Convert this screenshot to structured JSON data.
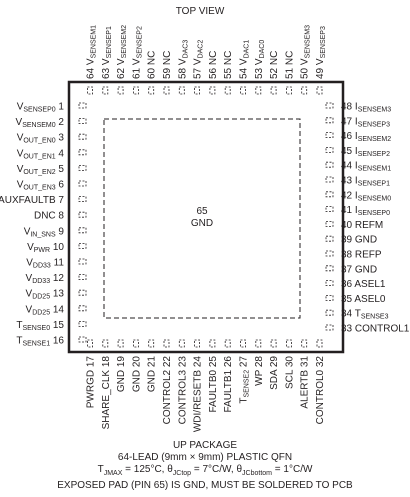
{
  "title": "TOP VIEW",
  "exposed_pad": {
    "number": "65",
    "name": "GND"
  },
  "pins": {
    "left": [
      {
        "n": "1",
        "name": "V",
        "sub": "SENSEP0"
      },
      {
        "n": "2",
        "name": "V",
        "sub": "SENSEM0"
      },
      {
        "n": "3",
        "name": "V",
        "sub": "OUT_EN0"
      },
      {
        "n": "4",
        "name": "V",
        "sub": "OUT_EN1"
      },
      {
        "n": "5",
        "name": "V",
        "sub": "OUT_EN2"
      },
      {
        "n": "6",
        "name": "V",
        "sub": "OUT_EN3"
      },
      {
        "n": "7",
        "name": "AUXFAULTB",
        "sub": ""
      },
      {
        "n": "8",
        "name": "DNC",
        "sub": ""
      },
      {
        "n": "9",
        "name": "V",
        "sub": "IN_SNS"
      },
      {
        "n": "10",
        "name": "V",
        "sub": "PWR"
      },
      {
        "n": "11",
        "name": "V",
        "sub": "DD33"
      },
      {
        "n": "12",
        "name": "V",
        "sub": "DD33"
      },
      {
        "n": "13",
        "name": "V",
        "sub": "DD25"
      },
      {
        "n": "14",
        "name": "V",
        "sub": "DD25"
      },
      {
        "n": "15",
        "name": "T",
        "sub": "SENSE0"
      },
      {
        "n": "16",
        "name": "T",
        "sub": "SENSE1"
      }
    ],
    "bottom": [
      {
        "n": "17",
        "name": "PWRGD",
        "sub": ""
      },
      {
        "n": "18",
        "name": "SHARE_CLK",
        "sub": ""
      },
      {
        "n": "19",
        "name": "GND",
        "sub": ""
      },
      {
        "n": "20",
        "name": "GND",
        "sub": ""
      },
      {
        "n": "21",
        "name": "GND",
        "sub": ""
      },
      {
        "n": "22",
        "name": "CONTROL2",
        "sub": ""
      },
      {
        "n": "23",
        "name": "CONTROL3",
        "sub": ""
      },
      {
        "n": "24",
        "name": "WDI/RESETB",
        "sub": ""
      },
      {
        "n": "25",
        "name": "FAULTB0",
        "sub": ""
      },
      {
        "n": "26",
        "name": "FAULTB1",
        "sub": ""
      },
      {
        "n": "27",
        "name": "T",
        "sub": "SENSE2"
      },
      {
        "n": "28",
        "name": "WP",
        "sub": ""
      },
      {
        "n": "29",
        "name": "SDA",
        "sub": ""
      },
      {
        "n": "30",
        "name": "SCL",
        "sub": ""
      },
      {
        "n": "31",
        "name": "ALERTB",
        "sub": ""
      },
      {
        "n": "32",
        "name": "CONTROL0",
        "sub": ""
      }
    ],
    "right": [
      {
        "n": "33",
        "name": "CONTROL1",
        "sub": ""
      },
      {
        "n": "34",
        "name": "T",
        "sub": "SENSE3"
      },
      {
        "n": "35",
        "name": "ASEL0",
        "sub": ""
      },
      {
        "n": "36",
        "name": "ASEL1",
        "sub": ""
      },
      {
        "n": "37",
        "name": "GND",
        "sub": ""
      },
      {
        "n": "38",
        "name": "REFP",
        "sub": ""
      },
      {
        "n": "39",
        "name": "GND",
        "sub": ""
      },
      {
        "n": "40",
        "name": "REFM",
        "sub": ""
      },
      {
        "n": "41",
        "name": "I",
        "sub": "SENSEP0"
      },
      {
        "n": "42",
        "name": "I",
        "sub": "SENSEM0"
      },
      {
        "n": "43",
        "name": "I",
        "sub": "SENSEP1"
      },
      {
        "n": "44",
        "name": "I",
        "sub": "SENSEM1"
      },
      {
        "n": "45",
        "name": "I",
        "sub": "SENSEP2"
      },
      {
        "n": "46",
        "name": "I",
        "sub": "SENSEM2"
      },
      {
        "n": "47",
        "name": "I",
        "sub": "SENSEP3"
      },
      {
        "n": "48",
        "name": "I",
        "sub": "SENSEM3"
      }
    ],
    "top": [
      {
        "n": "64",
        "name": "V",
        "sub": "SENSEM1"
      },
      {
        "n": "63",
        "name": "V",
        "sub": "SENSEP1"
      },
      {
        "n": "62",
        "name": "V",
        "sub": "SENSEM2"
      },
      {
        "n": "61",
        "name": "V",
        "sub": "SENSEP2"
      },
      {
        "n": "60",
        "name": "NC",
        "sub": ""
      },
      {
        "n": "59",
        "name": "NC",
        "sub": ""
      },
      {
        "n": "58",
        "name": "V",
        "sub": "DAC3"
      },
      {
        "n": "57",
        "name": "V",
        "sub": "DAC2"
      },
      {
        "n": "56",
        "name": "NC",
        "sub": ""
      },
      {
        "n": "55",
        "name": "NC",
        "sub": ""
      },
      {
        "n": "54",
        "name": "V",
        "sub": "DAC1"
      },
      {
        "n": "53",
        "name": "V",
        "sub": "DAC0"
      },
      {
        "n": "52",
        "name": "NC",
        "sub": ""
      },
      {
        "n": "51",
        "name": "NC",
        "sub": ""
      },
      {
        "n": "50",
        "name": "V",
        "sub": "SENSEM3"
      },
      {
        "n": "49",
        "name": "V",
        "sub": "SENSEP3"
      }
    ]
  },
  "footer": {
    "package": "UP PACKAGE",
    "description": "64-LEAD (9mm × 9mm) PLASTIC QFN",
    "thermal": {
      "tjmax_label": "T",
      "tjmax_sub": "JMAX",
      "tjmax_value": " = 125°C, ",
      "theta_top": "θ",
      "theta_top_sub": "JCtop",
      "theta_top_value": " = 7°C/W, ",
      "theta_bottom": "θ",
      "theta_bottom_sub": "JCbottom",
      "theta_bottom_value": " = 1°C/W"
    },
    "note": "EXPOSED PAD (PIN 65) IS GND, MUST BE SOLDERED TO PCB"
  },
  "colors": {
    "ink": "#231f20",
    "background": "#ffffff"
  }
}
